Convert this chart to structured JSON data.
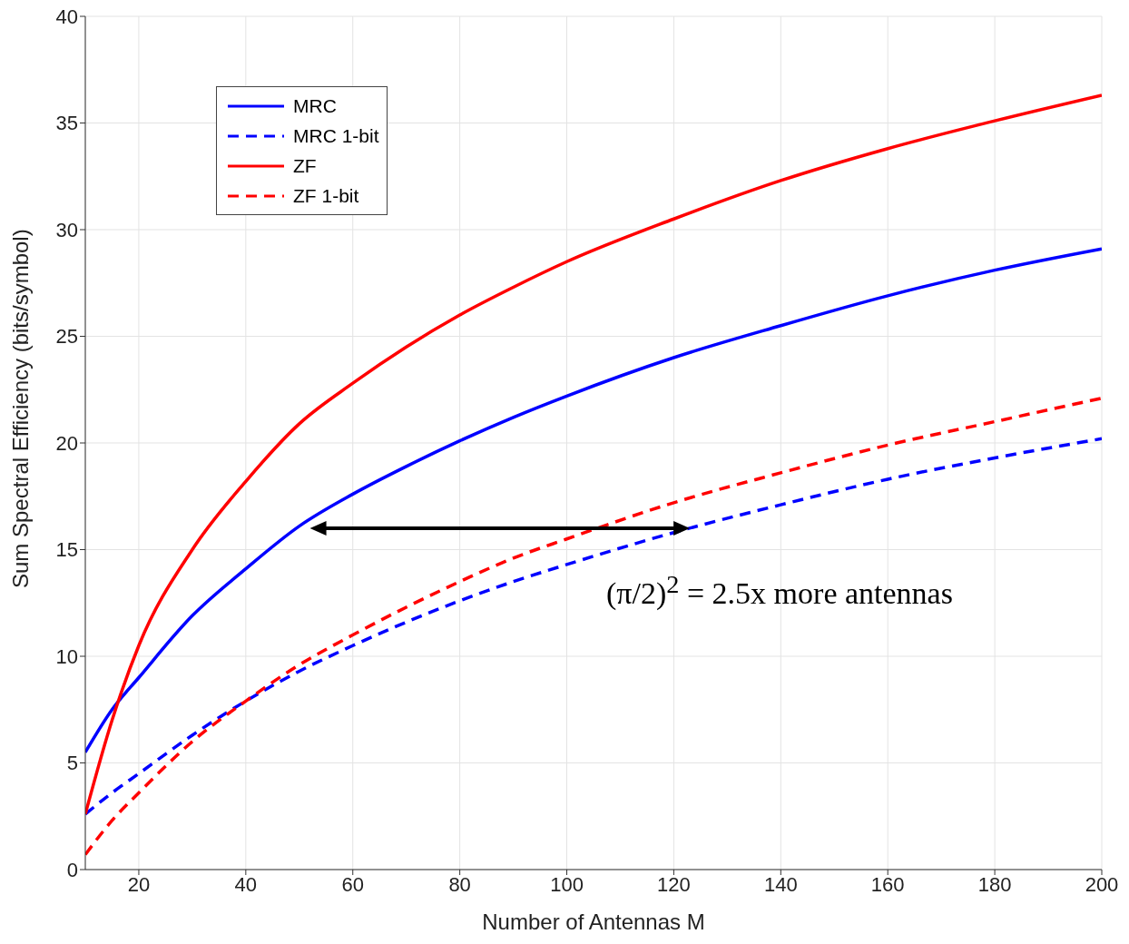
{
  "chart_data": {
    "type": "line",
    "xlabel": "Number of Antennas M",
    "ylabel": "Sum Spectral Efficiency (bits/symbol)",
    "x": [
      10,
      15,
      20,
      30,
      40,
      50,
      60,
      70,
      80,
      90,
      100,
      120,
      140,
      160,
      180,
      200
    ],
    "series": [
      {
        "name": "MRC",
        "color": "#0000ff",
        "line_style": "solid",
        "values": [
          5.5,
          7.5,
          9.0,
          11.9,
          14.1,
          16.1,
          17.6,
          18.9,
          20.1,
          21.2,
          22.2,
          24.0,
          25.5,
          26.9,
          28.1,
          29.1
        ]
      },
      {
        "name": "MRC 1-bit",
        "color": "#0000ff",
        "line_style": "dashed",
        "values": [
          2.6,
          3.6,
          4.5,
          6.3,
          7.9,
          9.3,
          10.5,
          11.6,
          12.6,
          13.5,
          14.3,
          15.8,
          17.1,
          18.3,
          19.3,
          20.2
        ]
      },
      {
        "name": "ZF",
        "color": "#ff0000",
        "line_style": "solid",
        "values": [
          2.6,
          7.0,
          10.5,
          15.0,
          18.2,
          20.9,
          22.8,
          24.5,
          26.0,
          27.3,
          28.5,
          30.5,
          32.3,
          33.8,
          35.1,
          36.3
        ]
      },
      {
        "name": "ZF 1-bit",
        "color": "#ff0000",
        "line_style": "dashed",
        "values": [
          0.7,
          2.3,
          3.6,
          6.0,
          7.9,
          9.6,
          11.0,
          12.3,
          13.5,
          14.6,
          15.5,
          17.2,
          18.6,
          19.9,
          21.0,
          22.1
        ]
      }
    ],
    "xlim": [
      10,
      200
    ],
    "xticks": [
      20,
      40,
      60,
      80,
      100,
      120,
      140,
      160,
      180,
      200
    ],
    "ylim": [
      0,
      40
    ],
    "yticks": [
      0,
      5,
      10,
      15,
      20,
      25,
      30,
      35,
      40
    ],
    "grid": true,
    "legend": "top left",
    "marker": "none",
    "annotations": [
      "(π/2)$^{2}$ = 2.5x more antennas"
    ]
  }
}
